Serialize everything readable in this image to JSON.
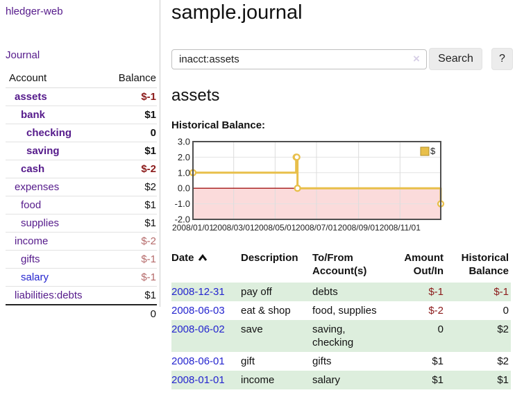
{
  "colors": {
    "link_purple": "#551a8b",
    "link_blue": "#2424cf",
    "negative_strong": "#8b1a1a",
    "negative_soft": "#b56a6a",
    "row_stripe_green": "#ddeedd"
  },
  "app": {
    "title": "hledger-web"
  },
  "sidebar": {
    "journal_link": "Journal",
    "accounts": {
      "col_account": "Account",
      "col_balance": "Balance",
      "rows": [
        {
          "name": "assets",
          "balance": "$-1"
        },
        {
          "name": "bank",
          "balance": "$1"
        },
        {
          "name": "checking",
          "balance": "0"
        },
        {
          "name": "saving",
          "balance": "$1"
        },
        {
          "name": "cash",
          "balance": "$-2"
        },
        {
          "name": "expenses",
          "balance": "$2"
        },
        {
          "name": "food",
          "balance": "$1"
        },
        {
          "name": "supplies",
          "balance": "$1"
        },
        {
          "name": "income",
          "balance": "$-2"
        },
        {
          "name": "gifts",
          "balance": "$-1"
        },
        {
          "name": "salary",
          "balance": "$-1"
        },
        {
          "name": "liabilities:debts",
          "balance": "$1"
        }
      ],
      "total": "0"
    }
  },
  "main": {
    "title": "sample.journal",
    "search": {
      "value": "inacct:assets",
      "clear": "×",
      "search_button": "Search",
      "help_button": "?"
    },
    "heading": "assets",
    "chart_label": "Historical Balance:"
  },
  "chart_data": {
    "type": "line",
    "step": true,
    "title": "Historical Balance",
    "x": [
      "2008-01-01",
      "2008-06-01",
      "2008-06-02",
      "2008-06-03",
      "2008-12-31"
    ],
    "values": [
      1,
      2,
      2,
      0,
      -1
    ],
    "xlim": [
      "2008-01-01",
      "2008-12-31"
    ],
    "ylim": [
      -2,
      3
    ],
    "y_ticks": [
      "3.0",
      "2.0",
      "1.0",
      "0.0",
      "-1.0",
      "-2.0"
    ],
    "x_ticks": [
      {
        "label": "2008/01/01",
        "date": "2008-01-01"
      },
      {
        "label": "2008/03/01",
        "date": "2008-03-01"
      },
      {
        "label": "2008/05/01",
        "date": "2008-05-01"
      },
      {
        "label": "2008/07/01",
        "date": "2008-07-01"
      },
      {
        "label": "2008/09/01",
        "date": "2008-09-01"
      },
      {
        "label": "2008/11/01",
        "date": "2008-11-01"
      }
    ],
    "legend": [
      {
        "label": "$",
        "position": "top-right"
      }
    ],
    "grid": true,
    "negative_region": true,
    "colors": {
      "line": "#e8bf4a",
      "legend_border": "#b08f2a",
      "negative_fill": "#fbdbdb",
      "zero_line": "#a31515",
      "plot_border": "#4f4f4f",
      "grid": "#dcdcdc",
      "label": "#222222"
    }
  },
  "register": {
    "headers": {
      "date": "Date",
      "description": "Description",
      "account": "To/From Account(s)",
      "amount": "Amount Out/In",
      "balance": "Historical Balance"
    },
    "rows": [
      {
        "date": "2008-12-31",
        "description": "pay off",
        "account": "debts",
        "amount": "$-1",
        "balance": "$-1"
      },
      {
        "date": "2008-06-03",
        "description": "eat & shop",
        "account": "food, supplies",
        "amount": "$-2",
        "balance": "0"
      },
      {
        "date": "2008-06-02",
        "description": "save",
        "account": "saving, checking",
        "amount": "0",
        "balance": "$2"
      },
      {
        "date": "2008-06-01",
        "description": "gift",
        "account": "gifts",
        "amount": "$1",
        "balance": "$2"
      },
      {
        "date": "2008-01-01",
        "description": "income",
        "account": "salary",
        "amount": "$1",
        "balance": "$1"
      }
    ]
  }
}
